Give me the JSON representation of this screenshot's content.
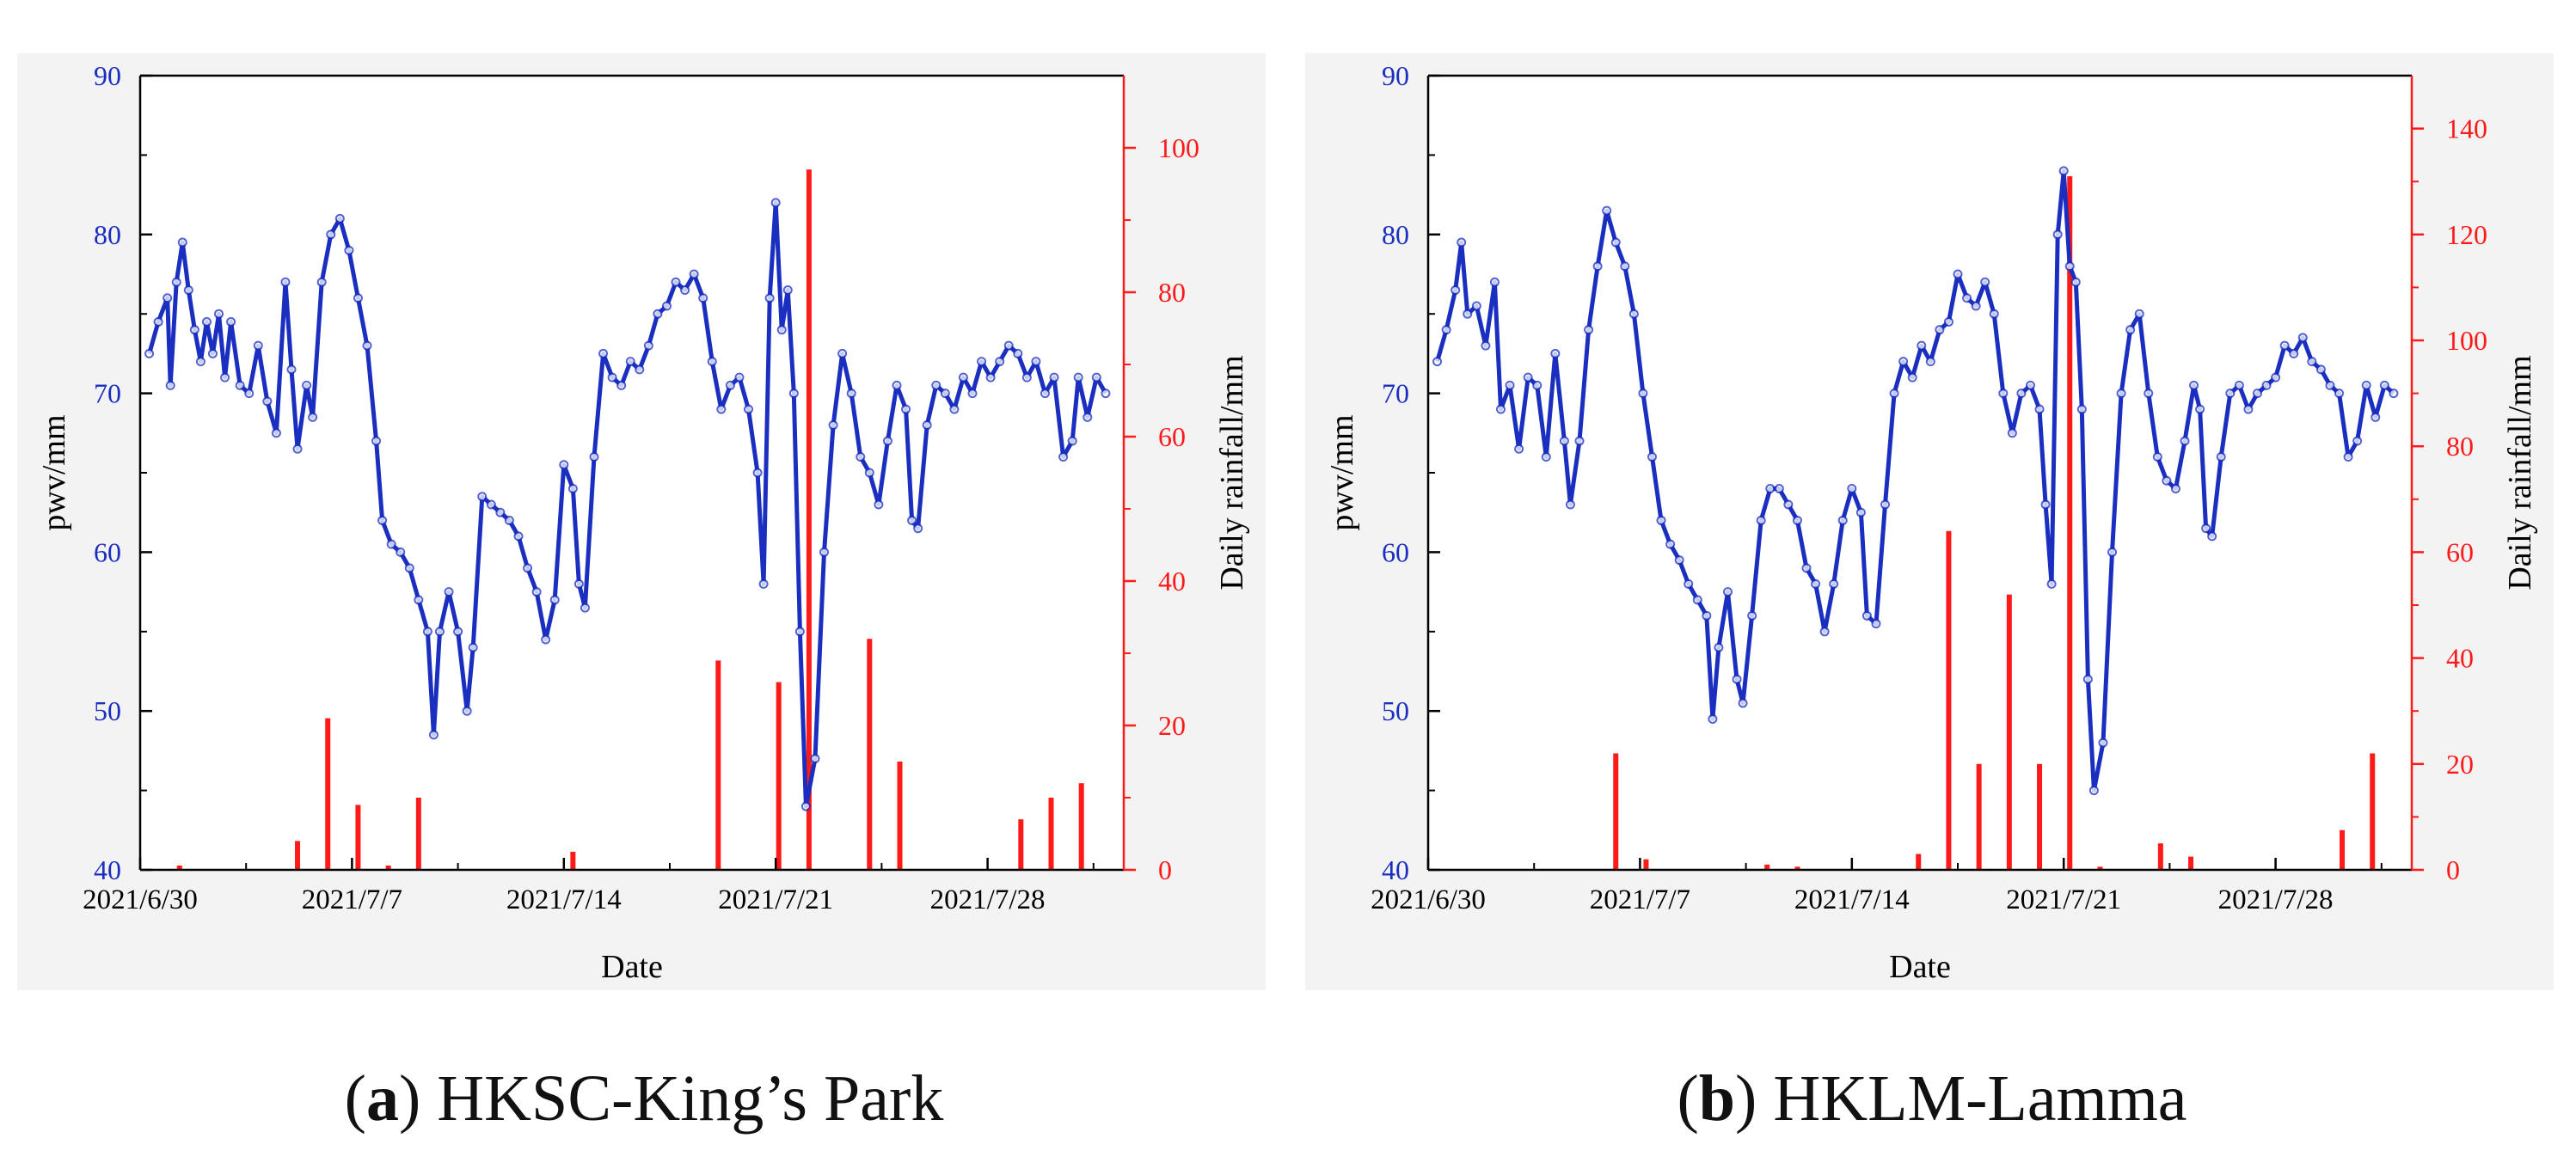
{
  "colors": {
    "pwv": "#1a2fbf",
    "rain": "#ff1a1a",
    "axis": "#000000",
    "background": "#f3f3f3"
  },
  "chart_data": [
    {
      "type": "line",
      "id": "panel-a",
      "caption_letter": "a",
      "caption_text": "HKSC-King’s Park",
      "xlabel": "Date",
      "ylabel_left": "pwv/mm",
      "ylabel_right": "Daily rainfall/mm",
      "xlim": [
        0,
        32.5
      ],
      "ylim_left": [
        40,
        90
      ],
      "ylim_right": [
        0,
        110
      ],
      "x_ticks": [
        {
          "day": 0,
          "label": "2021/6/30"
        },
        {
          "day": 7,
          "label": "2021/7/7"
        },
        {
          "day": 14,
          "label": "2021/7/14"
        },
        {
          "day": 21,
          "label": "2021/7/21"
        },
        {
          "day": 28,
          "label": "2021/7/28"
        }
      ],
      "y_ticks_left": [
        "40",
        "50",
        "60",
        "70",
        "80",
        "90"
      ],
      "y_ticks_right": [
        "0",
        "20",
        "40",
        "60",
        "80",
        "100"
      ],
      "pwv_series": {
        "name": "pwv",
        "points": [
          [
            0.3,
            72.5
          ],
          [
            0.6,
            74.5
          ],
          [
            0.9,
            76
          ],
          [
            1.0,
            70.5
          ],
          [
            1.2,
            77
          ],
          [
            1.4,
            79.5
          ],
          [
            1.6,
            76.5
          ],
          [
            1.8,
            74
          ],
          [
            2.0,
            72
          ],
          [
            2.2,
            74.5
          ],
          [
            2.4,
            72.5
          ],
          [
            2.6,
            75
          ],
          [
            2.8,
            71
          ],
          [
            3.0,
            74.5
          ],
          [
            3.3,
            70.5
          ],
          [
            3.6,
            70
          ],
          [
            3.9,
            73
          ],
          [
            4.2,
            69.5
          ],
          [
            4.5,
            67.5
          ],
          [
            4.8,
            77
          ],
          [
            5.0,
            71.5
          ],
          [
            5.2,
            66.5
          ],
          [
            5.5,
            70.5
          ],
          [
            5.7,
            68.5
          ],
          [
            6.0,
            77
          ],
          [
            6.3,
            80
          ],
          [
            6.6,
            81
          ],
          [
            6.9,
            79
          ],
          [
            7.2,
            76
          ],
          [
            7.5,
            73
          ],
          [
            7.8,
            67
          ],
          [
            8.0,
            62
          ],
          [
            8.3,
            60.5
          ],
          [
            8.6,
            60
          ],
          [
            8.9,
            59
          ],
          [
            9.2,
            57
          ],
          [
            9.5,
            55
          ],
          [
            9.7,
            48.5
          ],
          [
            9.9,
            55
          ],
          [
            10.2,
            57.5
          ],
          [
            10.5,
            55
          ],
          [
            10.8,
            50
          ],
          [
            11.0,
            54
          ],
          [
            11.3,
            63.5
          ],
          [
            11.6,
            63
          ],
          [
            11.9,
            62.5
          ],
          [
            12.2,
            62
          ],
          [
            12.5,
            61
          ],
          [
            12.8,
            59
          ],
          [
            13.1,
            57.5
          ],
          [
            13.4,
            54.5
          ],
          [
            13.7,
            57
          ],
          [
            14.0,
            65.5
          ],
          [
            14.3,
            64
          ],
          [
            14.5,
            58
          ],
          [
            14.7,
            56.5
          ],
          [
            15.0,
            66
          ],
          [
            15.3,
            72.5
          ],
          [
            15.6,
            71
          ],
          [
            15.9,
            70.5
          ],
          [
            16.2,
            72
          ],
          [
            16.5,
            71.5
          ],
          [
            16.8,
            73
          ],
          [
            17.1,
            75
          ],
          [
            17.4,
            75.5
          ],
          [
            17.7,
            77
          ],
          [
            18.0,
            76.5
          ],
          [
            18.3,
            77.5
          ],
          [
            18.6,
            76
          ],
          [
            18.9,
            72
          ],
          [
            19.2,
            69
          ],
          [
            19.5,
            70.5
          ],
          [
            19.8,
            71
          ],
          [
            20.1,
            69
          ],
          [
            20.4,
            65
          ],
          [
            20.6,
            58
          ],
          [
            20.8,
            76
          ],
          [
            21.0,
            82
          ],
          [
            21.2,
            74
          ],
          [
            21.4,
            76.5
          ],
          [
            21.6,
            70
          ],
          [
            21.8,
            55
          ],
          [
            22.0,
            44
          ],
          [
            22.3,
            47
          ],
          [
            22.6,
            60
          ],
          [
            22.9,
            68
          ],
          [
            23.2,
            72.5
          ],
          [
            23.5,
            70
          ],
          [
            23.8,
            66
          ],
          [
            24.1,
            65
          ],
          [
            24.4,
            63
          ],
          [
            24.7,
            67
          ],
          [
            25.0,
            70.5
          ],
          [
            25.3,
            69
          ],
          [
            25.5,
            62
          ],
          [
            25.7,
            61.5
          ],
          [
            26.0,
            68
          ],
          [
            26.3,
            70.5
          ],
          [
            26.6,
            70
          ],
          [
            26.9,
            69
          ],
          [
            27.2,
            71
          ],
          [
            27.5,
            70
          ],
          [
            27.8,
            72
          ],
          [
            28.1,
            71
          ],
          [
            28.4,
            72
          ],
          [
            28.7,
            73
          ],
          [
            29.0,
            72.5
          ],
          [
            29.3,
            71
          ],
          [
            29.6,
            72
          ],
          [
            29.9,
            70
          ],
          [
            30.2,
            71
          ],
          [
            30.5,
            66
          ],
          [
            30.8,
            67
          ],
          [
            31.0,
            71
          ],
          [
            31.3,
            68.5
          ],
          [
            31.6,
            71
          ],
          [
            31.9,
            70
          ]
        ]
      },
      "rain_series": {
        "name": "Daily rainfall",
        "days": [
          1.3,
          5.2,
          6.2,
          7.2,
          8.2,
          9.2,
          14.3,
          19.1,
          21.1,
          22.1,
          24.1,
          25.1,
          29.1,
          30.1,
          31.1
        ],
        "values": [
          0.6,
          4,
          21,
          9,
          0.6,
          10,
          2.5,
          29,
          26,
          97,
          32,
          15,
          7,
          10,
          12
        ]
      }
    },
    {
      "type": "line",
      "id": "panel-b",
      "caption_letter": "b",
      "caption_text": "HKLM-Lamma",
      "xlabel": "Date",
      "ylabel_left": "pwv/mm",
      "ylabel_right": "Daily rainfall/mm",
      "xlim": [
        0,
        32.5
      ],
      "ylim_left": [
        40,
        90
      ],
      "ylim_right": [
        0,
        150
      ],
      "x_ticks": [
        {
          "day": 0,
          "label": "2021/6/30"
        },
        {
          "day": 7,
          "label": "2021/7/7"
        },
        {
          "day": 14,
          "label": "2021/7/14"
        },
        {
          "day": 21,
          "label": "2021/7/21"
        },
        {
          "day": 28,
          "label": "2021/7/28"
        }
      ],
      "y_ticks_left": [
        "40",
        "50",
        "60",
        "70",
        "80",
        "90"
      ],
      "y_ticks_right": [
        "0",
        "20",
        "40",
        "60",
        "80",
        "100",
        "120",
        "140"
      ],
      "pwv_series": {
        "name": "pwv",
        "points": [
          [
            0.3,
            72
          ],
          [
            0.6,
            74
          ],
          [
            0.9,
            76.5
          ],
          [
            1.1,
            79.5
          ],
          [
            1.3,
            75
          ],
          [
            1.6,
            75.5
          ],
          [
            1.9,
            73
          ],
          [
            2.2,
            77
          ],
          [
            2.4,
            69
          ],
          [
            2.7,
            70.5
          ],
          [
            3.0,
            66.5
          ],
          [
            3.3,
            71
          ],
          [
            3.6,
            70.5
          ],
          [
            3.9,
            66
          ],
          [
            4.2,
            72.5
          ],
          [
            4.5,
            67
          ],
          [
            4.7,
            63
          ],
          [
            5.0,
            67
          ],
          [
            5.3,
            74
          ],
          [
            5.6,
            78
          ],
          [
            5.9,
            81.5
          ],
          [
            6.2,
            79.5
          ],
          [
            6.5,
            78
          ],
          [
            6.8,
            75
          ],
          [
            7.1,
            70
          ],
          [
            7.4,
            66
          ],
          [
            7.7,
            62
          ],
          [
            8.0,
            60.5
          ],
          [
            8.3,
            59.5
          ],
          [
            8.6,
            58
          ],
          [
            8.9,
            57
          ],
          [
            9.2,
            56
          ],
          [
            9.4,
            49.5
          ],
          [
            9.6,
            54
          ],
          [
            9.9,
            57.5
          ],
          [
            10.2,
            52
          ],
          [
            10.4,
            50.5
          ],
          [
            10.7,
            56
          ],
          [
            11.0,
            62
          ],
          [
            11.3,
            64
          ],
          [
            11.6,
            64
          ],
          [
            11.9,
            63
          ],
          [
            12.2,
            62
          ],
          [
            12.5,
            59
          ],
          [
            12.8,
            58
          ],
          [
            13.1,
            55
          ],
          [
            13.4,
            58
          ],
          [
            13.7,
            62
          ],
          [
            14.0,
            64
          ],
          [
            14.3,
            62.5
          ],
          [
            14.5,
            56
          ],
          [
            14.8,
            55.5
          ],
          [
            15.1,
            63
          ],
          [
            15.4,
            70
          ],
          [
            15.7,
            72
          ],
          [
            16.0,
            71
          ],
          [
            16.3,
            73
          ],
          [
            16.6,
            72
          ],
          [
            16.9,
            74
          ],
          [
            17.2,
            74.5
          ],
          [
            17.5,
            77.5
          ],
          [
            17.8,
            76
          ],
          [
            18.1,
            75.5
          ],
          [
            18.4,
            77
          ],
          [
            18.7,
            75
          ],
          [
            19.0,
            70
          ],
          [
            19.3,
            67.5
          ],
          [
            19.6,
            70
          ],
          [
            19.9,
            70.5
          ],
          [
            20.2,
            69
          ],
          [
            20.4,
            63
          ],
          [
            20.6,
            58
          ],
          [
            20.8,
            80
          ],
          [
            21.0,
            84
          ],
          [
            21.2,
            78
          ],
          [
            21.4,
            77
          ],
          [
            21.6,
            69
          ],
          [
            21.8,
            52
          ],
          [
            22.0,
            45
          ],
          [
            22.3,
            48
          ],
          [
            22.6,
            60
          ],
          [
            22.9,
            70
          ],
          [
            23.2,
            74
          ],
          [
            23.5,
            75
          ],
          [
            23.8,
            70
          ],
          [
            24.1,
            66
          ],
          [
            24.4,
            64.5
          ],
          [
            24.7,
            64
          ],
          [
            25.0,
            67
          ],
          [
            25.3,
            70.5
          ],
          [
            25.5,
            69
          ],
          [
            25.7,
            61.5
          ],
          [
            25.9,
            61
          ],
          [
            26.2,
            66
          ],
          [
            26.5,
            70
          ],
          [
            26.8,
            70.5
          ],
          [
            27.1,
            69
          ],
          [
            27.4,
            70
          ],
          [
            27.7,
            70.5
          ],
          [
            28.0,
            71
          ],
          [
            28.3,
            73
          ],
          [
            28.6,
            72.5
          ],
          [
            28.9,
            73.5
          ],
          [
            29.2,
            72
          ],
          [
            29.5,
            71.5
          ],
          [
            29.8,
            70.5
          ],
          [
            30.1,
            70
          ],
          [
            30.4,
            66
          ],
          [
            30.7,
            67
          ],
          [
            31.0,
            70.5
          ],
          [
            31.3,
            68.5
          ],
          [
            31.6,
            70.5
          ],
          [
            31.9,
            70
          ]
        ]
      },
      "rain_series": {
        "name": "Daily rainfall",
        "days": [
          6.2,
          7.2,
          11.2,
          12.2,
          16.2,
          17.2,
          18.2,
          19.2,
          20.2,
          21.2,
          22.2,
          24.2,
          25.2,
          30.2,
          31.2
        ],
        "values": [
          22,
          2,
          1,
          0.6,
          3,
          64,
          20,
          52,
          20,
          131,
          0.6,
          5,
          2.5,
          7.5,
          22
        ]
      }
    }
  ]
}
